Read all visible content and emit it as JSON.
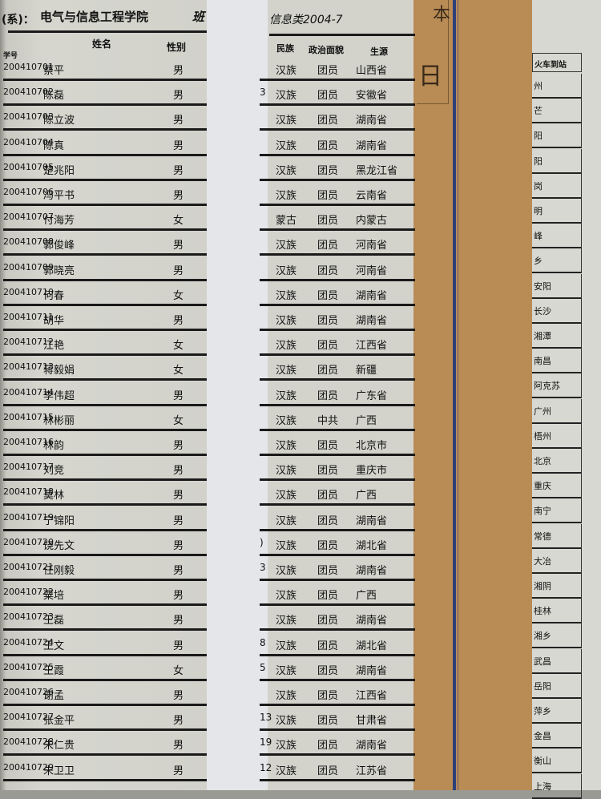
{
  "header": {
    "dept_label": "(系)：",
    "college": "电气与信息工程学院",
    "class_prefix": "班",
    "class_name": "信息类2004-7"
  },
  "columns": {
    "id": "学号",
    "name": "姓名",
    "gender": "性别",
    "ethnicity": "民族",
    "political": "政治面貌",
    "origin": "生源",
    "station": "火车到站"
  },
  "envelope": {
    "glyph": "日",
    "glyph2": "本"
  },
  "rows": [
    {
      "id": "200410701",
      "name": "蔡平",
      "gender": "男",
      "frag": "",
      "eth": "汉族",
      "pol": "团员",
      "origin": "山西省",
      "station": "州"
    },
    {
      "id": "200410702",
      "name": "陈磊",
      "gender": "男",
      "frag": "3",
      "eth": "汉族",
      "pol": "团员",
      "origin": "安徽省",
      "station": "芒"
    },
    {
      "id": "200410703",
      "name": "陈立波",
      "gender": "男",
      "frag": "",
      "eth": "汉族",
      "pol": "团员",
      "origin": "湖南省",
      "station": "阳"
    },
    {
      "id": "200410704",
      "name": "陈真",
      "gender": "男",
      "frag": "",
      "eth": "汉族",
      "pol": "团员",
      "origin": "湖南省",
      "station": "阳"
    },
    {
      "id": "200410705",
      "name": "楚兆阳",
      "gender": "男",
      "frag": "",
      "eth": "汉族",
      "pol": "团员",
      "origin": "黑龙江省",
      "station": "岗"
    },
    {
      "id": "200410706",
      "name": "冯平书",
      "gender": "男",
      "frag": "",
      "eth": "汉族",
      "pol": "团员",
      "origin": "云南省",
      "station": "明"
    },
    {
      "id": "200410707",
      "name": "付海芳",
      "gender": "女",
      "frag": "",
      "eth": "蒙古",
      "pol": "团员",
      "origin": "内蒙古",
      "station": "峰"
    },
    {
      "id": "200410708",
      "name": "郭俊峰",
      "gender": "男",
      "frag": "",
      "eth": "汉族",
      "pol": "团员",
      "origin": "河南省",
      "station": "乡"
    },
    {
      "id": "200410709",
      "name": "郭晓亮",
      "gender": "男",
      "frag": "",
      "eth": "汉族",
      "pol": "团员",
      "origin": "河南省",
      "station": "安阳"
    },
    {
      "id": "200410710",
      "name": "何春",
      "gender": "女",
      "frag": "",
      "eth": "汉族",
      "pol": "团员",
      "origin": "湖南省",
      "station": "长沙"
    },
    {
      "id": "200410711",
      "name": "胡华",
      "gender": "男",
      "frag": "",
      "eth": "汉族",
      "pol": "团员",
      "origin": "湖南省",
      "station": "湘潭"
    },
    {
      "id": "200410712",
      "name": "江艳",
      "gender": "女",
      "frag": "",
      "eth": "汉族",
      "pol": "团员",
      "origin": "江西省",
      "station": "南昌"
    },
    {
      "id": "200410713",
      "name": "蒋毅娟",
      "gender": "女",
      "frag": "",
      "eth": "汉族",
      "pol": "团员",
      "origin": "新疆",
      "station": "阿克苏"
    },
    {
      "id": "200410714",
      "name": "李伟超",
      "gender": "男",
      "frag": "",
      "eth": "汉族",
      "pol": "团员",
      "origin": "广东省",
      "station": "广州"
    },
    {
      "id": "200410715",
      "name": "林彬丽",
      "gender": "女",
      "frag": "",
      "eth": "汉族",
      "pol": "中共",
      "origin": "广西",
      "station": "梧州"
    },
    {
      "id": "200410716",
      "name": "林韵",
      "gender": "男",
      "frag": "",
      "eth": "汉族",
      "pol": "团员",
      "origin": "北京市",
      "station": "北京"
    },
    {
      "id": "200410717",
      "name": "刘竞",
      "gender": "男",
      "frag": "",
      "eth": "汉族",
      "pol": "团员",
      "origin": "重庆市",
      "station": "重庆"
    },
    {
      "id": "200410718",
      "name": "莫林",
      "gender": "男",
      "frag": "",
      "eth": "汉族",
      "pol": "团员",
      "origin": "广西",
      "station": "南宁"
    },
    {
      "id": "200410719",
      "name": "宁锦阳",
      "gender": "男",
      "frag": "",
      "eth": "汉族",
      "pol": "团员",
      "origin": "湖南省",
      "station": "常德"
    },
    {
      "id": "200410720",
      "name": "饶先文",
      "gender": "男",
      "frag": ")",
      "eth": "汉族",
      "pol": "团员",
      "origin": "湖北省",
      "station": "大冶"
    },
    {
      "id": "200410721",
      "name": "任刚毅",
      "gender": "男",
      "frag": "3",
      "eth": "汉族",
      "pol": "团员",
      "origin": "湖南省",
      "station": "湘阴"
    },
    {
      "id": "200410722",
      "name": "粟培",
      "gender": "男",
      "frag": "",
      "eth": "汉族",
      "pol": "团员",
      "origin": "广西",
      "station": "桂林"
    },
    {
      "id": "200410723",
      "name": "王磊",
      "gender": "男",
      "frag": "",
      "eth": "汉族",
      "pol": "团员",
      "origin": "湖南省",
      "station": "湘乡"
    },
    {
      "id": "200410724",
      "name": "王文",
      "gender": "男",
      "frag": "8",
      "eth": "汉族",
      "pol": "团员",
      "origin": "湖北省",
      "station": "武昌"
    },
    {
      "id": "200410725",
      "name": "王霞",
      "gender": "女",
      "frag": "5",
      "eth": "汉族",
      "pol": "团员",
      "origin": "湖南省",
      "station": "岳阳"
    },
    {
      "id": "200410726",
      "name": "谢孟",
      "gender": "男",
      "frag": "",
      "eth": "汉族",
      "pol": "团员",
      "origin": "江西省",
      "station": "萍乡"
    },
    {
      "id": "200410727",
      "name": "张金平",
      "gender": "男",
      "frag": "13",
      "eth": "汉族",
      "pol": "团员",
      "origin": "甘肃省",
      "station": "金昌"
    },
    {
      "id": "200410728",
      "name": "朱仁贵",
      "gender": "男",
      "frag": "19",
      "eth": "汉族",
      "pol": "团员",
      "origin": "湖南省",
      "station": "衡山"
    },
    {
      "id": "200410729",
      "name": "朱卫卫",
      "gender": "男",
      "frag": "12",
      "eth": "汉族",
      "pol": "团员",
      "origin": "江苏省",
      "station": "上海"
    }
  ]
}
